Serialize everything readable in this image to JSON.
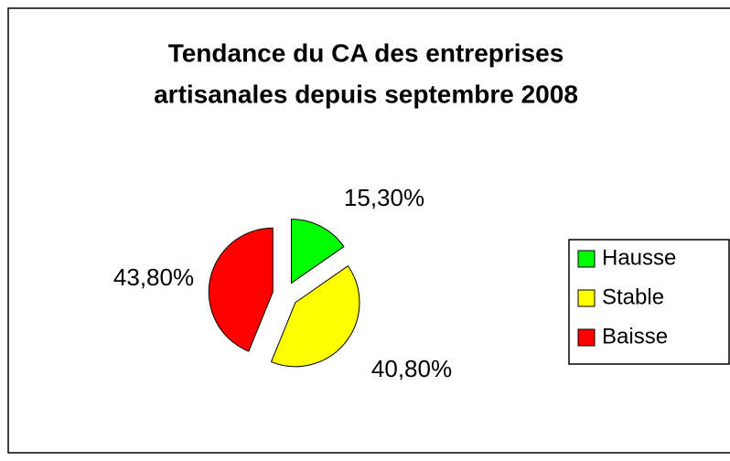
{
  "chart_data": {
    "type": "pie",
    "title": [
      "Tendance du CA des entreprises",
      "artisanales depuis septembre 2008"
    ],
    "categories": [
      "Hausse",
      "Stable",
      "Baisse"
    ],
    "values": [
      15.3,
      40.8,
      43.8
    ],
    "value_labels": [
      "15,30%",
      "40,80%",
      "43,80%"
    ],
    "colors": [
      "#00ff00",
      "#ffff00",
      "#ff0000"
    ],
    "legend": "right"
  }
}
